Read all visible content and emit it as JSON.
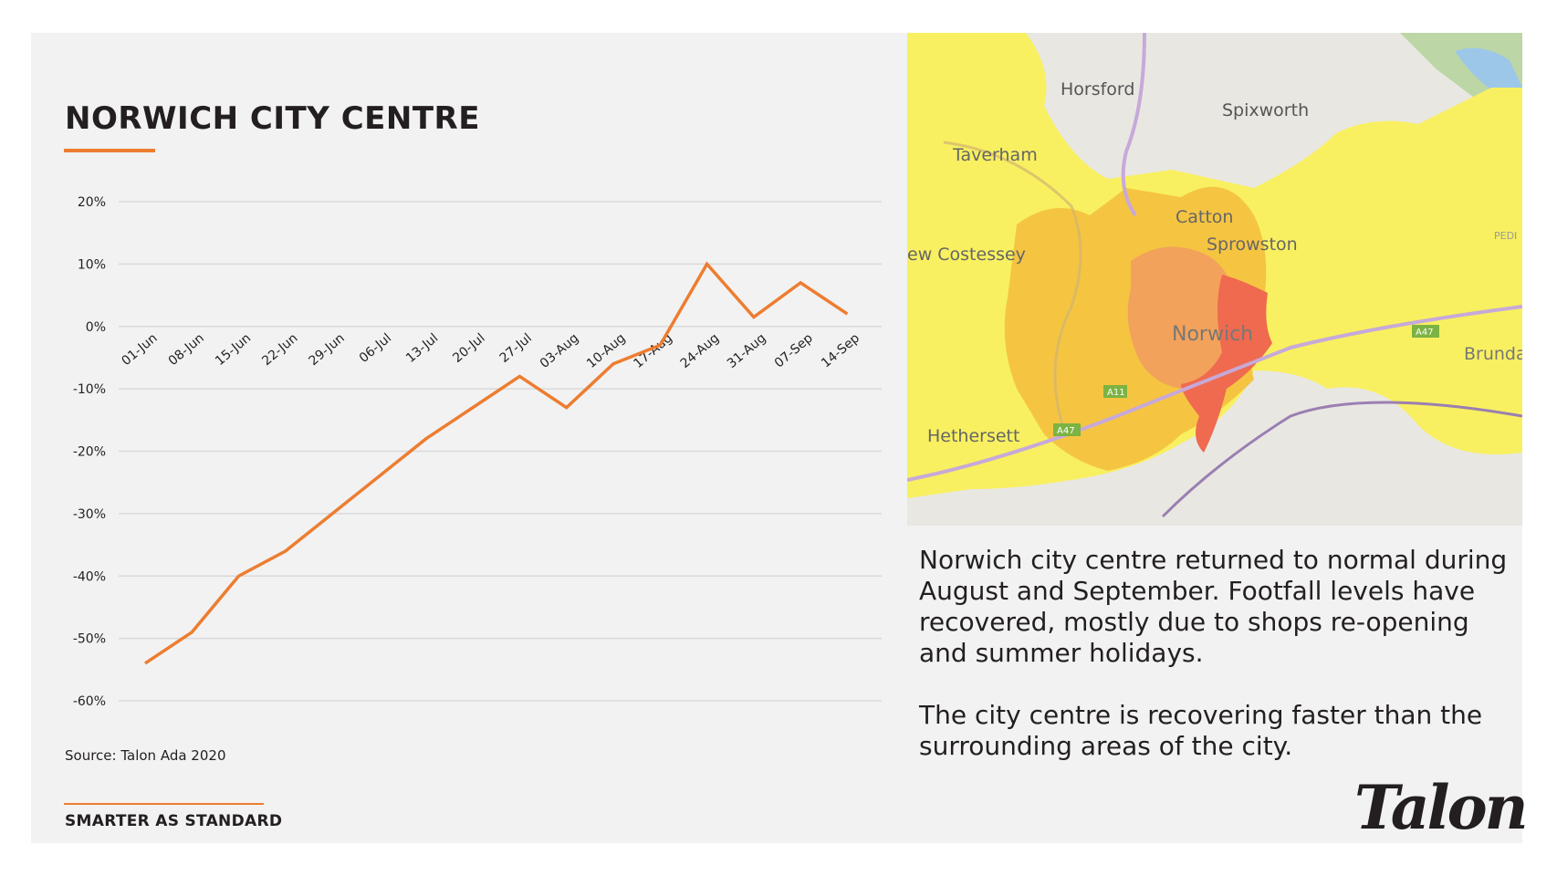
{
  "title": "NORWICH CITY CENTRE",
  "source": "Source: Talon Ada 2020",
  "footer": "SMARTER AS STANDARD",
  "logo": "Talon",
  "description": [
    "Norwich city centre returned to normal during August and September. Footfall levels have recovered, mostly due to shops re-opening and summer holidays.",
    "The city centre is recovering faster than the surrounding areas of the city."
  ],
  "map": {
    "labels": [
      "Horsford",
      "Spixworth",
      "Taverham",
      "Catton",
      "Sprowston",
      "ew Costessey",
      "Norwich",
      "Brunda",
      "Hethersett",
      "A11",
      "A47",
      "A47",
      "PEDI"
    ],
    "colors": {
      "yellow": "#f8f060",
      "amber": "#f5c542",
      "orange": "#f2a25a",
      "red": "#ef6a4f"
    }
  },
  "chart_data": {
    "type": "line",
    "categories": [
      "01-Jun",
      "08-Jun",
      "15-Jun",
      "22-Jun",
      "29-Jun",
      "06-Jul",
      "13-Jul",
      "20-Jul",
      "27-Jul",
      "03-Aug",
      "10-Aug",
      "17-Aug",
      "24-Aug",
      "31-Aug",
      "07-Sep",
      "14-Sep"
    ],
    "series": [
      {
        "values": [
          -54,
          -49,
          -40,
          -36,
          -30,
          -24,
          -18,
          -13,
          -8,
          -13,
          -6,
          -3,
          10,
          1.5,
          7,
          2
        ],
        "color": "#ed7d31"
      }
    ],
    "yticks": [
      "20%",
      "10%",
      "0%",
      "-10%",
      "-20%",
      "-30%",
      "-40%",
      "-50%",
      "-60%"
    ],
    "ylim": [
      -60,
      20
    ],
    "grid": true,
    "xlabel": "",
    "ylabel": ""
  }
}
